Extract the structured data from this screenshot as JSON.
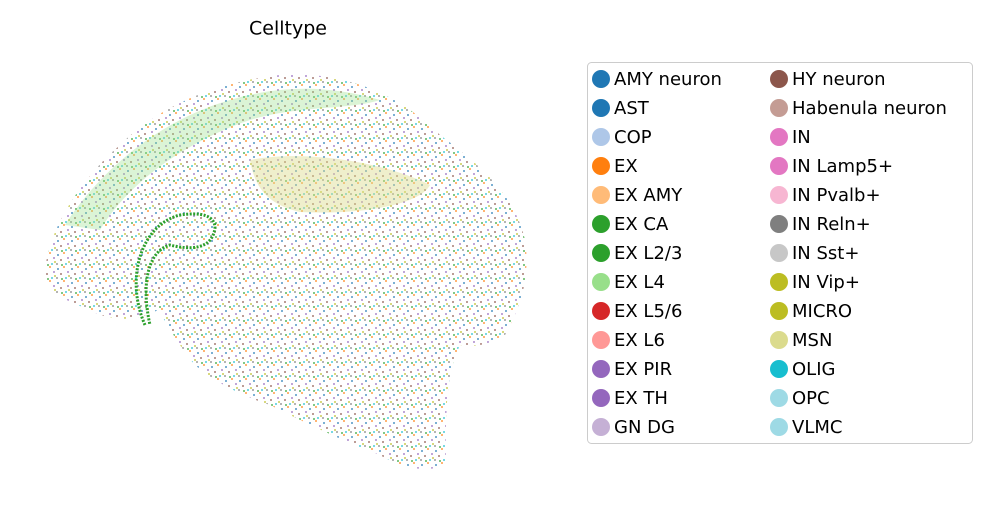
{
  "chart_data": {
    "type": "scatter",
    "title": "Celltype",
    "series": [
      {
        "name": "AMY neuron",
        "color": "#1f77b4"
      },
      {
        "name": "AST",
        "color": "#1f77b4"
      },
      {
        "name": "COP",
        "color": "#aec7e8"
      },
      {
        "name": "EX",
        "color": "#ff7f0e"
      },
      {
        "name": "EX AMY",
        "color": "#ffbb78"
      },
      {
        "name": "EX CA",
        "color": "#2ca02c"
      },
      {
        "name": "EX L2/3",
        "color": "#2ca02c"
      },
      {
        "name": "EX L4",
        "color": "#98df8a"
      },
      {
        "name": "EX L5/6",
        "color": "#d62728"
      },
      {
        "name": "EX L6",
        "color": "#ff9896"
      },
      {
        "name": "EX PIR",
        "color": "#9467bd"
      },
      {
        "name": "EX TH",
        "color": "#9467bd"
      },
      {
        "name": "GN DG",
        "color": "#c5b0d5"
      },
      {
        "name": "HY neuron",
        "color": "#8c564b"
      },
      {
        "name": "Habenula neuron",
        "color": "#c49c94"
      },
      {
        "name": "IN",
        "color": "#e377c2"
      },
      {
        "name": "IN Lamp5+",
        "color": "#e377c2"
      },
      {
        "name": "IN Pvalb+",
        "color": "#f7b6d2"
      },
      {
        "name": "IN Reln+",
        "color": "#7f7f7f"
      },
      {
        "name": "IN Sst+",
        "color": "#c7c7c7"
      },
      {
        "name": "IN Vip+",
        "color": "#bcbd22"
      },
      {
        "name": "MICRO",
        "color": "#bcbd22"
      },
      {
        "name": "MSN",
        "color": "#dbdb8d"
      },
      {
        "name": "OLIG",
        "color": "#17becf"
      },
      {
        "name": "OPC",
        "color": "#9edae5"
      },
      {
        "name": "VLMC",
        "color": "#9edae5"
      }
    ]
  }
}
